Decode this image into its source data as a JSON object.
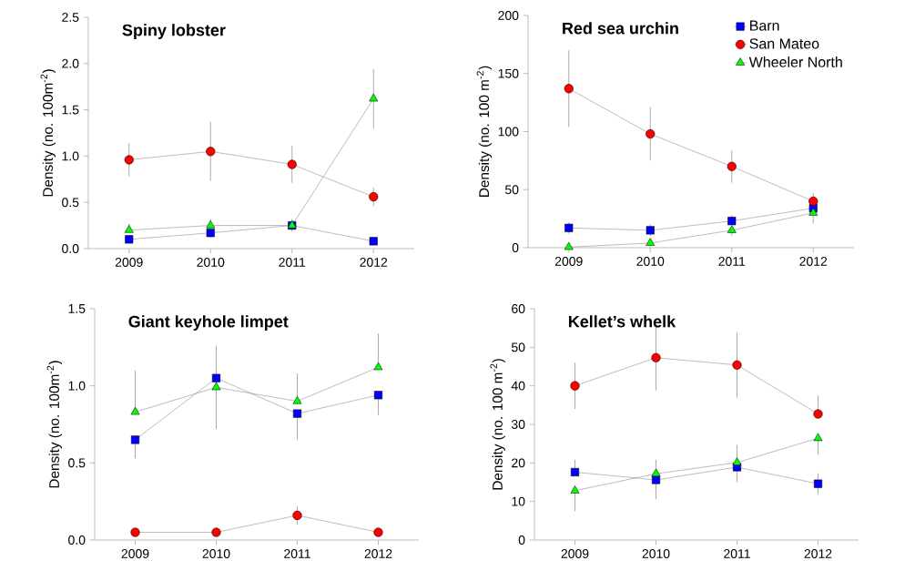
{
  "chart_data": [
    {
      "type": "line",
      "title": "Spiny lobster",
      "ylabel": "Density (no. 100m$^{-2}$)",
      "x": [
        2009,
        2010,
        2011,
        2012
      ],
      "xlim": [
        2008.5,
        2012.5
      ],
      "xticks": [
        2009,
        2010,
        2011,
        2012
      ],
      "ylim": [
        0,
        2.5
      ],
      "yticks": [
        {
          "value": 0,
          "label": "0.0"
        },
        {
          "value": 0.5,
          "label": "0.5"
        },
        {
          "value": 1,
          "label": "1.0"
        },
        {
          "value": 1.5,
          "label": "1.5"
        },
        {
          "value": 2,
          "label": "2.0"
        },
        {
          "value": 2.5,
          "label": "2.5"
        }
      ],
      "grid": false,
      "legend": false,
      "series": [
        {
          "color": "#0000ff",
          "marker": "square",
          "values": [
            0.1,
            0.17,
            0.25,
            0.08
          ],
          "errors": [
            [
              0.07,
              0.1
            ],
            [
              0.12,
              0.17
            ],
            null,
            null
          ]
        },
        {
          "color": "#ff0000",
          "marker": "circle",
          "values": [
            0.96,
            1.05,
            0.91,
            0.56
          ],
          "errors": [
            0.18,
            0.32,
            0.2,
            0.1
          ]
        },
        {
          "color": "#00ff00",
          "marker": "triangle",
          "values": [
            0.2,
            0.25,
            0.25,
            1.62
          ],
          "errors": [
            [
              0.2,
              0.27
            ],
            [
              0.25,
              0.32
            ],
            0.07,
            0.32
          ]
        }
      ]
    },
    {
      "type": "line",
      "title": "Red sea urchin",
      "ylabel": "Density (no. 100 m$^{-2}$)",
      "x": [
        2009,
        2010,
        2011,
        2012
      ],
      "xlim": [
        2008.5,
        2012.5
      ],
      "xticks": [
        2009,
        2010,
        2011,
        2012
      ],
      "ylim": [
        0,
        200
      ],
      "yticks": [
        0,
        50,
        100,
        150,
        200
      ],
      "grid": false,
      "legend": "top right",
      "series": [
        {
          "name": "Barn",
          "color": "#0000ff",
          "marker": "square",
          "values": [
            17,
            15,
            23,
            34
          ],
          "errors": [
            5,
            5,
            [
              23,
              28
            ],
            null
          ]
        },
        {
          "name": "San Mateo",
          "color": "#ff0000",
          "marker": "circle",
          "values": [
            137,
            98,
            70,
            40
          ],
          "errors": [
            33,
            23,
            14,
            [
              40,
              47
            ]
          ]
        },
        {
          "name": "Wheeler North",
          "color": "#00ff00",
          "marker": "triangle",
          "values": [
            0.5,
            4,
            15,
            30
          ],
          "errors": [
            null,
            3,
            [
              10,
              15
            ],
            [
              21,
              30
            ]
          ]
        }
      ]
    },
    {
      "type": "line",
      "title": "Giant keyhole limpet",
      "ylabel": "Density (no. 100m$^{-2}$)",
      "x": [
        2009,
        2010,
        2011,
        2012
      ],
      "xlim": [
        2008.5,
        2012.5
      ],
      "xticks": [
        2009,
        2010,
        2011,
        2012
      ],
      "ylim": [
        0,
        1.5
      ],
      "yticks": [
        {
          "value": 0,
          "label": "0.0"
        },
        {
          "value": 0.5,
          "label": "0.5"
        },
        {
          "value": 1,
          "label": "1.0"
        },
        {
          "value": 1.5,
          "label": "1.5"
        }
      ],
      "grid": false,
      "legend": false,
      "series": [
        {
          "color": "#0000ff",
          "marker": "square",
          "values": [
            0.65,
            1.05,
            0.82,
            0.94
          ],
          "errors": [
            [
              0.53,
              0.65
            ],
            null,
            [
              0.65,
              0.82
            ],
            [
              0.81,
              0.94
            ]
          ]
        },
        {
          "color": "#ff0000",
          "marker": "circle",
          "values": [
            0.05,
            0.05,
            0.16,
            0.05
          ],
          "errors": [
            null,
            null,
            0.06,
            null
          ]
        },
        {
          "color": "#00ff00",
          "marker": "triangle",
          "values": [
            0.83,
            0.99,
            0.9,
            1.12
          ],
          "errors": [
            [
              0.83,
              1.1
            ],
            0.27,
            [
              0.9,
              1.08
            ],
            [
              1.12,
              1.34
            ]
          ]
        }
      ]
    },
    {
      "type": "line",
      "title": "Kellet’s whelk",
      "ylabel": "Density (no. 100 m$^{-2}$)",
      "x": [
        2009,
        2010,
        2011,
        2012
      ],
      "xlim": [
        2008.5,
        2012.5
      ],
      "xticks": [
        2009,
        2010,
        2011,
        2012
      ],
      "ylim": [
        0,
        60
      ],
      "yticks": [
        0,
        10,
        20,
        30,
        40,
        50,
        60
      ],
      "grid": false,
      "legend": false,
      "series": [
        {
          "color": "#0000ff",
          "marker": "square",
          "values": [
            17.6,
            15.6,
            18.9,
            14.6
          ],
          "errors": [
            [
              17.6,
              20.8
            ],
            [
              10.6,
              15.6
            ],
            [
              15.0,
              18.9
            ],
            2.7
          ]
        },
        {
          "color": "#ff0000",
          "marker": "circle",
          "values": [
            40.0,
            47.3,
            45.4,
            32.7
          ],
          "errors": [
            6,
            8.5,
            8.5,
            [
              32.7,
              37.5
            ]
          ]
        },
        {
          "color": "#00ff00",
          "marker": "triangle",
          "values": [
            12.8,
            17.2,
            20.1,
            26.4
          ],
          "errors": [
            [
              7.5,
              12.8
            ],
            [
              17.2,
              20.8
            ],
            [
              20.1,
              24.6
            ],
            [
              22.2,
              26.4
            ]
          ]
        }
      ]
    }
  ]
}
